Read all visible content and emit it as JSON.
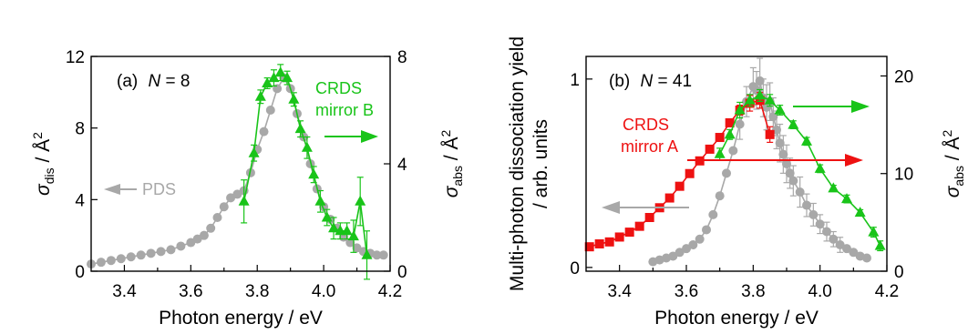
{
  "colors": {
    "green": "#19c419",
    "gray": "#a8a8a8",
    "red": "#ee1111",
    "black": "#000000"
  },
  "figure": {
    "panel_a": {
      "label_prefix": "(a)",
      "label_var": "N",
      "label_eq": " = 8",
      "ylabel_left_sym": "σ",
      "ylabel_left_sub": "dis",
      "ylabel_left_unit": " / Å",
      "ylabel_left_sup": "2",
      "ylabel_right_sym": "σ",
      "ylabel_right_sub": "abs",
      "ylabel_right_unit": " / Å",
      "ylabel_right_sup": "2",
      "xlabel": "Photon energy / eV",
      "ann_crds_line1": "CRDS",
      "ann_crds_line2": "mirror B",
      "ann_pds": "PDS"
    },
    "panel_b": {
      "label_prefix": "(b)",
      "label_var": "N",
      "label_eq": " = 41",
      "ylabel_left_line1": "Multi-photon dissociation yield",
      "ylabel_left_line2": "/ arb. units",
      "ylabel_right_sym": "σ",
      "ylabel_right_sub": "abs",
      "ylabel_right_unit": " / Å",
      "ylabel_right_sup": "2",
      "xlabel": "Photon energy / eV",
      "ann_crds_line1": "CRDS",
      "ann_crds_line2": "mirror A"
    }
  },
  "chart_data": [
    {
      "type": "scatter",
      "panel": "(a) N = 8",
      "xlabel": "Photon energy / eV",
      "ylabel_left": "σdis / Å2",
      "ylabel_right": "σabs / Å2",
      "xlim": [
        3.3,
        4.2
      ],
      "ylim_left": [
        0,
        12
      ],
      "ylim_right": [
        0,
        8
      ],
      "xticks": [
        "3.4",
        "3.6",
        "3.8",
        "4.0",
        "4.2"
      ],
      "yticks_left": [
        "0",
        "4",
        "8",
        "12"
      ],
      "yticks_right": [
        "0",
        "4",
        "8"
      ],
      "grid": false,
      "series": [
        {
          "name": "PDS",
          "axis": "left",
          "color": "#a8a8a8",
          "marker": "circle",
          "x": [
            3.3,
            3.33,
            3.36,
            3.39,
            3.42,
            3.45,
            3.48,
            3.51,
            3.54,
            3.57,
            3.6,
            3.62,
            3.64,
            3.66,
            3.68,
            3.7,
            3.72,
            3.74,
            3.76,
            3.78,
            3.8,
            3.82,
            3.84,
            3.86,
            3.88,
            3.9,
            3.92,
            3.94,
            3.96,
            3.98,
            4.0,
            4.02,
            4.04,
            4.06,
            4.08,
            4.1,
            4.12,
            4.14,
            4.16,
            4.18
          ],
          "y": [
            0.4,
            0.5,
            0.6,
            0.7,
            0.8,
            0.9,
            1.0,
            1.1,
            1.2,
            1.4,
            1.6,
            1.8,
            2.0,
            2.4,
            3.0,
            3.6,
            4.1,
            4.3,
            4.5,
            5.5,
            6.8,
            7.8,
            9.0,
            10.2,
            10.8,
            10.2,
            8.8,
            7.5,
            6.0,
            4.6,
            3.6,
            2.9,
            2.4,
            1.9,
            1.6,
            1.3,
            1.1,
            1.0,
            0.9,
            0.9
          ]
        },
        {
          "name": "CRDS mirror B",
          "axis": "right",
          "color": "#19c419",
          "marker": "triangle",
          "x": [
            3.76,
            3.79,
            3.81,
            3.83,
            3.85,
            3.87,
            3.89,
            3.91,
            3.93,
            3.95,
            3.97,
            3.99,
            4.01,
            4.03,
            4.05,
            4.07,
            4.09,
            4.11,
            4.13
          ],
          "y": [
            2.6,
            4.4,
            6.5,
            7.0,
            7.2,
            7.4,
            7.2,
            6.4,
            5.3,
            4.6,
            3.6,
            2.6,
            2.0,
            1.6,
            1.5,
            1.5,
            1.3,
            2.6,
            0.6
          ],
          "err": [
            0.8,
            0.3,
            0.25,
            0.2,
            0.3,
            0.3,
            0.25,
            0.25,
            0.3,
            0.4,
            0.3,
            0.4,
            0.3,
            0.4,
            0.3,
            0.3,
            0.6,
            0.9,
            0.9
          ]
        }
      ]
    },
    {
      "type": "scatter",
      "panel": "(b) N = 41",
      "xlabel": "Photon energy / eV",
      "ylabel_left": "Multi-photon dissociation yield / arb. units",
      "ylabel_right": "σabs / Å2",
      "xlim": [
        3.3,
        4.2
      ],
      "ylim_left": [
        -0.02,
        1.12
      ],
      "ylim_right": [
        0,
        22
      ],
      "xticks": [
        "3.4",
        "3.6",
        "3.8",
        "4.0",
        "4.2"
      ],
      "yticks_left": [
        "0",
        "1"
      ],
      "yticks_right": [
        "0",
        "10",
        "20"
      ],
      "grid": false,
      "series": [
        {
          "name": "Multi-photon dissociation yield",
          "axis": "left",
          "color": "#a8a8a8",
          "marker": "circle",
          "x": [
            3.5,
            3.52,
            3.54,
            3.56,
            3.58,
            3.6,
            3.62,
            3.64,
            3.66,
            3.68,
            3.7,
            3.72,
            3.74,
            3.76,
            3.78,
            3.8,
            3.81,
            3.82,
            3.83,
            3.84,
            3.85,
            3.86,
            3.87,
            3.88,
            3.89,
            3.9,
            3.91,
            3.92,
            3.94,
            3.96,
            3.98,
            4.0,
            4.02,
            4.04,
            4.06,
            4.08,
            4.1,
            4.12,
            4.14
          ],
          "y": [
            0.03,
            0.04,
            0.05,
            0.06,
            0.08,
            0.1,
            0.12,
            0.15,
            0.2,
            0.28,
            0.38,
            0.5,
            0.62,
            0.76,
            0.88,
            0.96,
            0.94,
            0.99,
            0.9,
            0.85,
            0.88,
            0.8,
            0.73,
            0.66,
            0.6,
            0.55,
            0.5,
            0.46,
            0.4,
            0.33,
            0.28,
            0.23,
            0.19,
            0.15,
            0.12,
            0.1,
            0.08,
            0.06,
            0.05
          ],
          "err": [
            0,
            0,
            0,
            0,
            0,
            0,
            0,
            0,
            0,
            0,
            0,
            0,
            0,
            0.08,
            0.08,
            0.1,
            0.1,
            0.12,
            0.1,
            0.12,
            0.1,
            0.1,
            0.1,
            0.1,
            0.1,
            0.1,
            0.08,
            0.08,
            0.08,
            0.06,
            0.06,
            0.05,
            0.05,
            0.04,
            0.04,
            0,
            0,
            0,
            0
          ]
        },
        {
          "name": "CRDS mirror A",
          "axis": "right",
          "color": "#ee1111",
          "marker": "square",
          "x": [
            3.31,
            3.34,
            3.37,
            3.4,
            3.43,
            3.46,
            3.49,
            3.52,
            3.55,
            3.58,
            3.61,
            3.64,
            3.67,
            3.7,
            3.73,
            3.76,
            3.79,
            3.82,
            3.85
          ],
          "y": [
            2.5,
            2.8,
            3.0,
            3.5,
            4.0,
            4.6,
            5.5,
            6.5,
            7.5,
            8.7,
            10.0,
            11.3,
            12.5,
            13.7,
            15.2,
            16.5,
            17.2,
            17.5,
            14.0
          ],
          "err": [
            0,
            0,
            0,
            0,
            0,
            0,
            0,
            0,
            0,
            0,
            0,
            0,
            0,
            0,
            0,
            0.5,
            0.8,
            0.8,
            0.8
          ]
        },
        {
          "name": "CRDS",
          "axis": "right",
          "color": "#19c419",
          "marker": "triangle",
          "x": [
            3.7,
            3.73,
            3.76,
            3.79,
            3.82,
            3.85,
            3.88,
            3.92,
            3.96,
            4.0,
            4.04,
            4.08,
            4.12,
            4.16,
            4.18
          ],
          "y": [
            12.0,
            14.0,
            16.5,
            17.5,
            18.0,
            17.5,
            16.5,
            15.0,
            13.3,
            10.5,
            8.5,
            7.4,
            6.0,
            4.0,
            2.6
          ],
          "err": [
            0.6,
            0.5,
            0.8,
            0.6,
            0.6,
            0.6,
            0.5,
            0.4,
            0.4,
            0.4,
            0.3,
            0.4,
            0.3,
            0.5,
            0.5
          ]
        }
      ]
    }
  ]
}
